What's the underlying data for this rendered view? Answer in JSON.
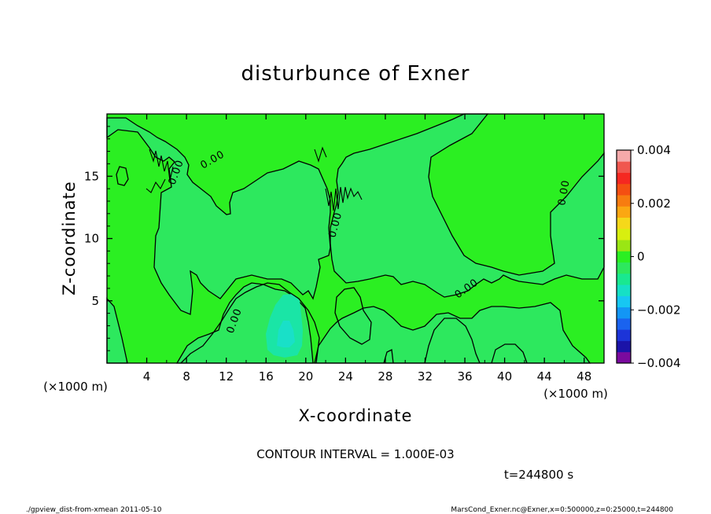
{
  "chart_data": {
    "type": "heatmap",
    "title": "disturbunce of Exner",
    "xlabel": "X-coordinate",
    "ylabel": "Z-coordinate",
    "x_unit": "(×1000 m)",
    "y_unit": "(×1000 m)",
    "xlim": [
      0,
      50
    ],
    "ylim": [
      0,
      20
    ],
    "x_ticks": [
      4,
      8,
      12,
      16,
      20,
      24,
      28,
      32,
      36,
      40,
      44,
      48
    ],
    "y_ticks": [
      5,
      10,
      15
    ],
    "colorbar": {
      "range": [
        -0.004,
        0.004
      ],
      "tick_labels": [
        "0.004",
        "0.002",
        "0",
        "−0.002",
        "−0.004"
      ],
      "tick_values": [
        0.004,
        0.002,
        0,
        -0.002,
        -0.004
      ],
      "colors": [
        "#7a0a9e",
        "#1b13a8",
        "#1c34d8",
        "#1a63ef",
        "#1396f5",
        "#17c7f2",
        "#16e0c5",
        "#19e890",
        "#2de85e",
        "#2bef22",
        "#9ae614",
        "#d8ef0f",
        "#f5d81a",
        "#fba712",
        "#f77c10",
        "#f44f12",
        "#f52821",
        "#f0574f",
        "#f5a9aa"
      ]
    },
    "background_value": 0,
    "field_regions": [
      {
        "value": 0.0,
        "color": "#2bef22"
      },
      {
        "value": -0.0005,
        "color": "#2de85e"
      },
      {
        "value": -0.0012,
        "color": "#1ae5a6"
      },
      {
        "value": -0.0015,
        "color": "#19e0c8"
      }
    ],
    "contour_labels": [
      "0.00",
      "0.00",
      "0.00",
      "0.00",
      "0.00",
      "0.00",
      "0.00"
    ],
    "contour_interval_text": "CONTOUR INTERVAL = 1.000E-03",
    "time_text": "t=244800 s",
    "footer_left": "./gpview_dist-from-xmean  2011-05-10",
    "footer_right": "MarsCond_Exner.nc@Exner,x=0:500000,z=0:25000,t=244800"
  }
}
